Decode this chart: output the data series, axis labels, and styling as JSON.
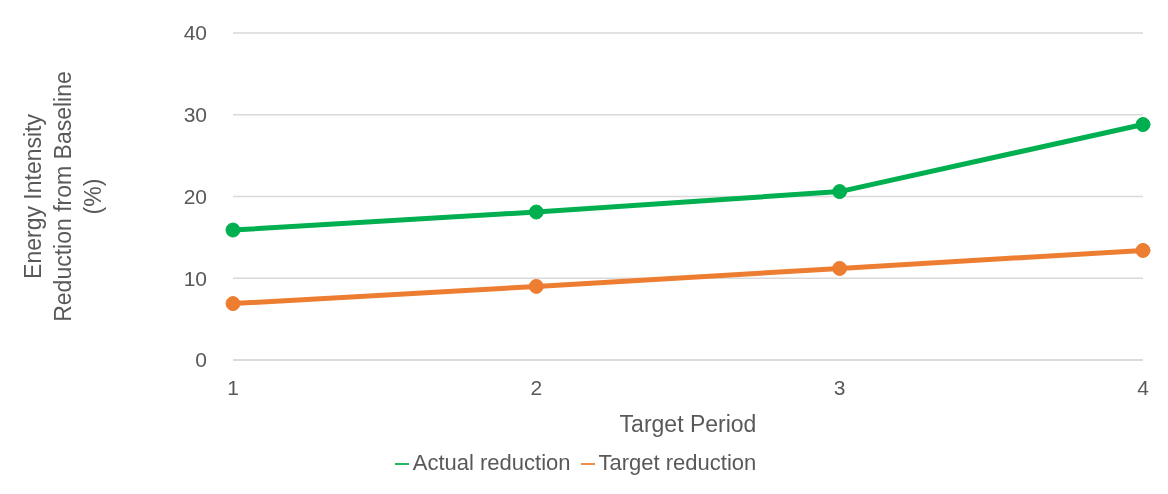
{
  "chart_data": {
    "type": "line",
    "xlabel": "Target Period",
    "ylabel": "Energy Intensity Reduction from Baseline (%)",
    "categories": [
      "1",
      "2",
      "3",
      "4"
    ],
    "series": [
      {
        "name": "Target reduction",
        "color": "#ed7d31",
        "values": [
          6.9,
          9.0,
          11.2,
          13.4
        ]
      },
      {
        "name": "Actual reduction",
        "color": "#00b050",
        "values": [
          15.9,
          18.1,
          20.6,
          28.8
        ]
      }
    ],
    "ylim": [
      0,
      40
    ],
    "yticks": [
      0,
      10,
      20,
      30,
      40
    ],
    "grid": "y",
    "legend": "bottom",
    "marker": "circle",
    "line_style": "solid"
  }
}
